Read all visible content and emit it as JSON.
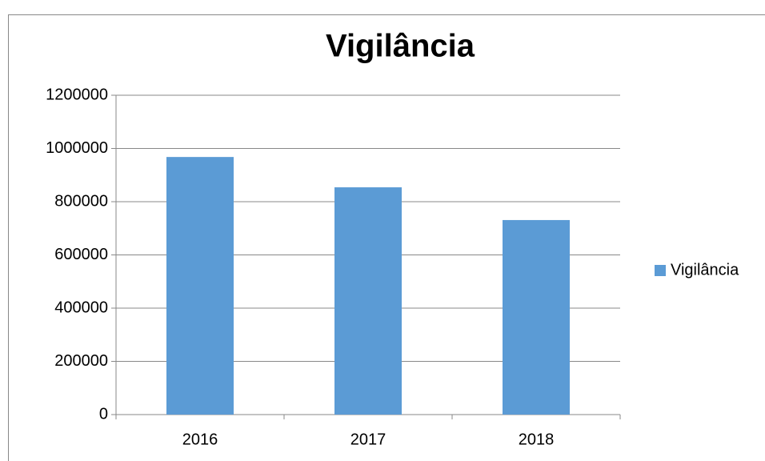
{
  "chart_data": {
    "type": "bar",
    "title": "Vigilância",
    "categories": [
      "2016",
      "2017",
      "2018"
    ],
    "series": [
      {
        "name": "Vigilância",
        "color": "#5b9bd5",
        "values": [
          968000,
          854000,
          731000
        ]
      }
    ],
    "ylim": [
      0,
      1200000
    ],
    "yticks": [
      0,
      200000,
      400000,
      600000,
      800000,
      1000000,
      1200000
    ],
    "grid": true,
    "legend": "right"
  }
}
